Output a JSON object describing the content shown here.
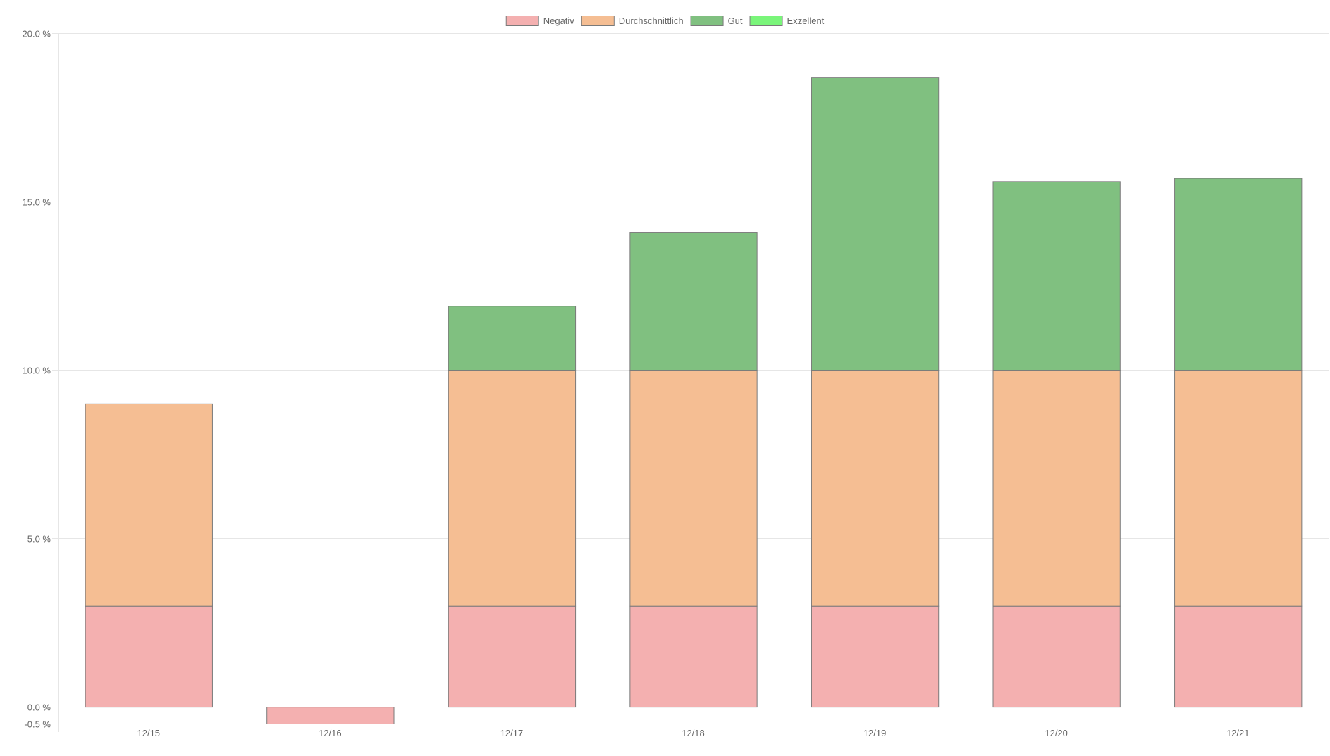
{
  "chart_data": {
    "type": "bar",
    "stacked": true,
    "categories": [
      "12/15",
      "12/16",
      "12/17",
      "12/18",
      "12/19",
      "12/20",
      "12/21"
    ],
    "series": [
      {
        "name": "Negativ",
        "color": "#f4b0b0",
        "values": [
          3.0,
          -0.5,
          3.0,
          3.0,
          3.0,
          3.0,
          3.0
        ]
      },
      {
        "name": "Durchschnittlich",
        "color": "#f5be93",
        "values": [
          6.0,
          0,
          7.0,
          7.0,
          7.0,
          7.0,
          7.0
        ]
      },
      {
        "name": "Gut",
        "color": "#80c080",
        "values": [
          0,
          0,
          1.9,
          4.1,
          8.7,
          5.6,
          5.7
        ]
      },
      {
        "name": "Exzellent",
        "color": "#7af57a",
        "values": [
          0,
          0,
          0,
          0,
          0,
          0,
          0
        ]
      }
    ],
    "ylim": [
      -0.5,
      20.0
    ],
    "yticks": [
      {
        "value": 20.0,
        "label": "20.0 %"
      },
      {
        "value": 15.0,
        "label": "15.0 %"
      },
      {
        "value": 10.0,
        "label": "10.0 %"
      },
      {
        "value": 5.0,
        "label": "5.0 %"
      },
      {
        "value": 0.0,
        "label": "0.0 %"
      },
      {
        "value": -0.5,
        "label": "-0.5 %"
      }
    ],
    "legend_position": "top",
    "grid": true,
    "grid_color": "#e6e6e6",
    "border_color": "#7a7a7a"
  }
}
